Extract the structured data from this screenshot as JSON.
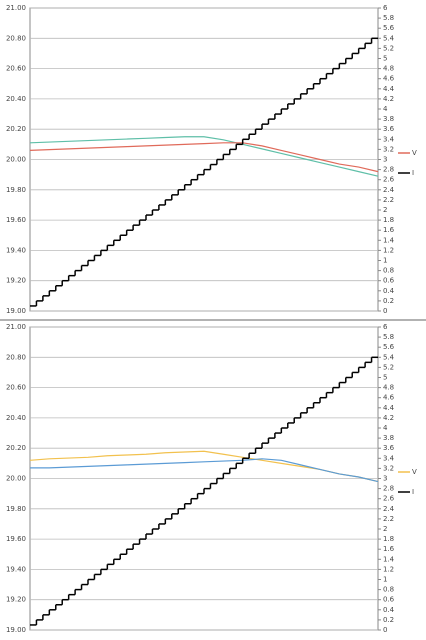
{
  "chart_data": [
    {
      "type": "line",
      "grid": true,
      "ylim": [
        19,
        21
      ],
      "yticks": [
        {
          "value": 19,
          "label": "19.00"
        },
        {
          "value": 19.2,
          "label": "19.20"
        },
        {
          "value": 19.4,
          "label": "19.40"
        },
        {
          "value": 19.6,
          "label": "19.60"
        },
        {
          "value": 19.8,
          "label": "19.80"
        },
        {
          "value": 20,
          "label": "20.00"
        },
        {
          "value": 20.2,
          "label": "20.20"
        },
        {
          "value": 20.4,
          "label": "20.40"
        },
        {
          "value": 20.6,
          "label": "20.60"
        },
        {
          "value": 20.8,
          "label": "20.80"
        },
        {
          "value": 21,
          "label": "21.00"
        }
      ],
      "y2lim": [
        0,
        6
      ],
      "y2ticks": [
        0,
        0.2,
        0.4,
        0.6,
        0.8,
        1,
        1.2,
        1.4,
        1.6,
        1.8,
        2,
        2.2,
        2.4,
        2.6,
        2.8,
        3,
        3.2,
        3.4,
        3.6,
        3.8,
        4,
        4.2,
        4.4,
        4.6,
        4.8,
        5,
        5.2,
        5.4,
        5.6,
        5.8,
        6
      ],
      "series": [
        {
          "name": null,
          "color": "#5fbfa8",
          "values": [
            20.11,
            20.115,
            20.12,
            20.125,
            20.13,
            20.135,
            20.14,
            20.145,
            20.15,
            20.15,
            20.13,
            20.1,
            20.07,
            20.04,
            20.01,
            19.98,
            19.95,
            19.92,
            19.89
          ]
        },
        {
          "name": "V",
          "color": "#e06a5a",
          "values": [
            20.06,
            20.065,
            20.07,
            20.075,
            20.08,
            20.085,
            20.09,
            20.095,
            20.1,
            20.105,
            20.11,
            20.11,
            20.09,
            20.06,
            20.03,
            20,
            19.97,
            19.95,
            19.92
          ]
        },
        {
          "name": "I",
          "color": "#000000",
          "axis": "y2",
          "step": true,
          "values": [
            0.1,
            0.2,
            0.3,
            0.4,
            0.5,
            0.6,
            0.7,
            0.8,
            0.9,
            1,
            1.1,
            1.2,
            1.3,
            1.4,
            1.5,
            1.6,
            1.7,
            1.8,
            1.9,
            2,
            2.1,
            2.2,
            2.3,
            2.4,
            2.5,
            2.6,
            2.7,
            2.8,
            2.9,
            3,
            3.1,
            3.2,
            3.3,
            3.4,
            3.5,
            3.6,
            3.7,
            3.8,
            3.9,
            4,
            4.1,
            4.2,
            4.3,
            4.4,
            4.5,
            4.6,
            4.7,
            4.8,
            4.9,
            5,
            5.1,
            5.2,
            5.3,
            5.4
          ]
        }
      ]
    },
    {
      "type": "line",
      "grid": true,
      "ylim": [
        19,
        21
      ],
      "yticks": [
        {
          "value": 19,
          "label": "19.00"
        },
        {
          "value": 19.2,
          "label": "19.20"
        },
        {
          "value": 19.4,
          "label": "19.40"
        },
        {
          "value": 19.6,
          "label": "19.60"
        },
        {
          "value": 19.8,
          "label": "19.80"
        },
        {
          "value": 20,
          "label": "20.00"
        },
        {
          "value": 20.2,
          "label": "20.20"
        },
        {
          "value": 20.4,
          "label": "20.40"
        },
        {
          "value": 20.6,
          "label": "20.60"
        },
        {
          "value": 20.8,
          "label": "20.80"
        },
        {
          "value": 21,
          "label": "21.00"
        }
      ],
      "y2lim": [
        0,
        6
      ],
      "y2ticks": [
        0,
        0.2,
        0.4,
        0.6,
        0.8,
        1,
        1.2,
        1.4,
        1.6,
        1.8,
        2,
        2.2,
        2.4,
        2.6,
        2.8,
        3,
        3.2,
        3.4,
        3.6,
        3.8,
        4,
        4.2,
        4.4,
        4.6,
        4.8,
        5,
        5.2,
        5.4,
        5.6,
        5.8,
        6
      ],
      "series": [
        {
          "name": "V",
          "color": "#f2c14e",
          "values": [
            20.12,
            20.13,
            20.135,
            20.14,
            20.15,
            20.155,
            20.16,
            20.17,
            20.175,
            20.18,
            20.16,
            20.14,
            20.12,
            20.1,
            20.08,
            20.06,
            20.03,
            20.01,
            19.98
          ]
        },
        {
          "name": null,
          "color": "#5b9bd5",
          "values": [
            20.07,
            20.07,
            20.075,
            20.08,
            20.085,
            20.09,
            20.095,
            20.1,
            20.105,
            20.11,
            20.115,
            20.12,
            20.13,
            20.12,
            20.09,
            20.06,
            20.03,
            20.01,
            19.98
          ]
        },
        {
          "name": "I",
          "color": "#000000",
          "axis": "y2",
          "step": true,
          "values": [
            0.1,
            0.2,
            0.3,
            0.4,
            0.5,
            0.6,
            0.7,
            0.8,
            0.9,
            1,
            1.1,
            1.2,
            1.3,
            1.4,
            1.5,
            1.6,
            1.7,
            1.8,
            1.9,
            2,
            2.1,
            2.2,
            2.3,
            2.4,
            2.5,
            2.6,
            2.7,
            2.8,
            2.9,
            3,
            3.1,
            3.2,
            3.3,
            3.4,
            3.5,
            3.6,
            3.7,
            3.8,
            3.9,
            4,
            4.1,
            4.2,
            4.3,
            4.4,
            4.5,
            4.6,
            4.7,
            4.8,
            4.9,
            5,
            5.1,
            5.2,
            5.3,
            5.4
          ]
        }
      ]
    }
  ]
}
